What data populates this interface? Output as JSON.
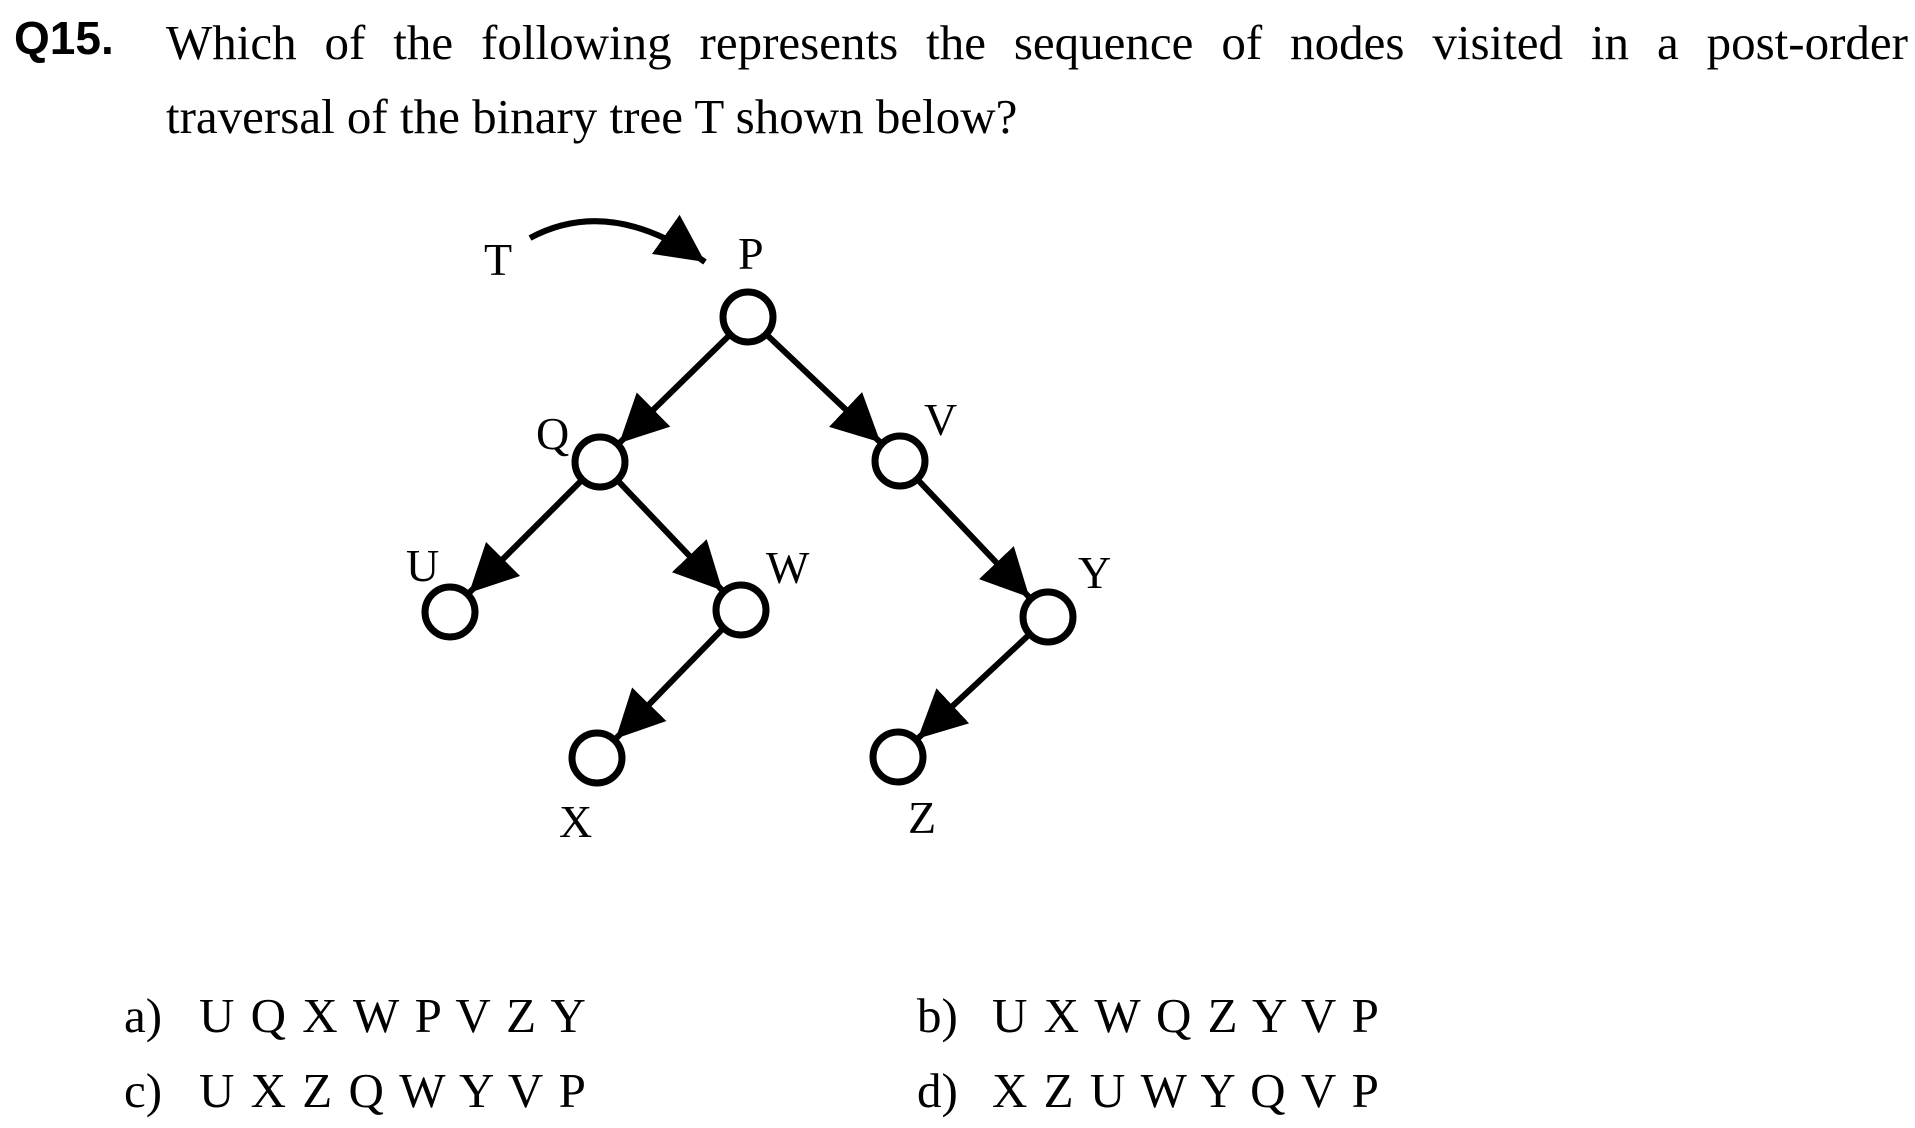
{
  "question": {
    "number": "Q15.",
    "line1": "Which of the following represents the sequence of nodes visited in a post-order",
    "line2": "traversal of the binary tree T shown below?"
  },
  "tree": {
    "pointer_label": "T",
    "nodes": {
      "P": "P",
      "Q": "Q",
      "V": "V",
      "U": "U",
      "W": "W",
      "Y": "Y",
      "X": "X",
      "Z": "Z"
    },
    "edges": [
      [
        "P",
        "Q"
      ],
      [
        "P",
        "V"
      ],
      [
        "Q",
        "U"
      ],
      [
        "Q",
        "W"
      ],
      [
        "W",
        "X"
      ],
      [
        "V",
        "Y"
      ],
      [
        "Y",
        "Z"
      ]
    ]
  },
  "options": [
    {
      "letter": "a)",
      "answer": "U Q X W P V Z Y"
    },
    {
      "letter": "b)",
      "answer": "U X W Q Z Y V P"
    },
    {
      "letter": "c)",
      "answer": "U X Z Q W Y V P"
    },
    {
      "letter": "d)",
      "answer": "X Z U W Y Q V P"
    }
  ]
}
